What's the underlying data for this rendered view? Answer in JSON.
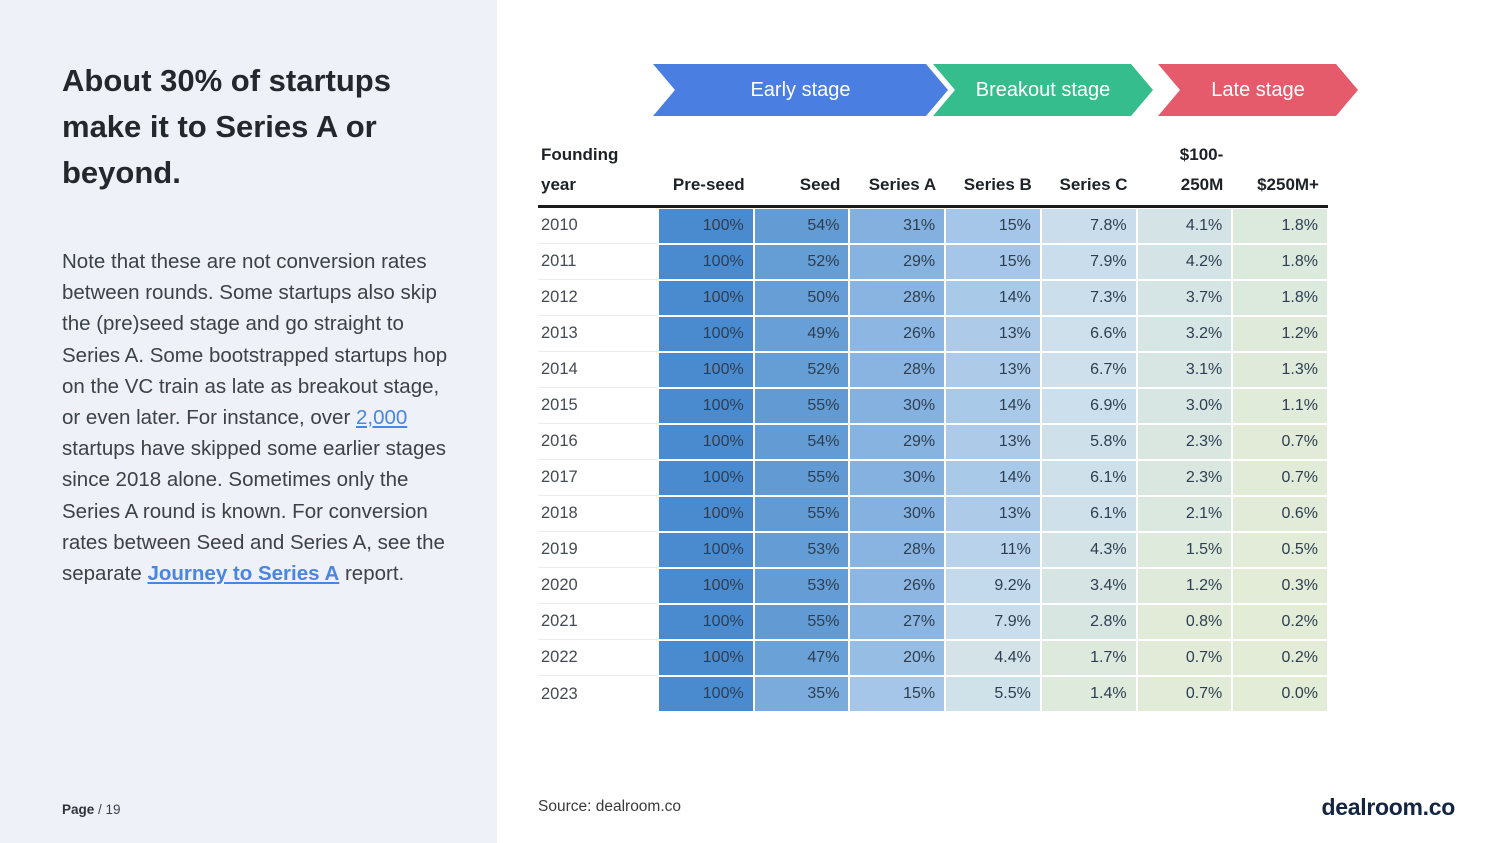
{
  "sidebar": {
    "title": "About 30% of startups make it to Series A or beyond.",
    "paragraph": {
      "part1": "Note that these are not conversion rates between rounds. Some startups also skip the (pre)seed stage and go straight to Series A. Some bootstrapped startups hop on the VC train as late as breakout stage, or even later. For instance, over ",
      "link1": "2,000",
      "part2": " startups have skipped some earlier stages since 2018 alone. Sometimes only the Series A round is known. For conversion rates between Seed and Series A, see the separate ",
      "link2": "Journey to Series A",
      "part3": " report."
    },
    "page_label": "Page",
    "page_number": "/ 19"
  },
  "stage_banners": [
    {
      "label": "Early stage",
      "color": "#4a7ee0"
    },
    {
      "label": "Breakout stage",
      "color": "#36bd8d"
    },
    {
      "label": "Late stage",
      "color": "#e65b6c"
    }
  ],
  "footer": {
    "source": "Source: dealroom.co",
    "logo": "dealroom.co"
  },
  "chart_data": {
    "type": "heatmap",
    "title": "Share of startups reaching each funding stage by founding year",
    "columns": [
      "Founding year",
      "Pre-seed",
      "Seed",
      "Series A",
      "Series B",
      "Series C",
      "$100-250M",
      "$250M+"
    ],
    "header_lines": [
      [
        "Founding",
        "year"
      ],
      [
        "Pre-seed"
      ],
      [
        "Seed"
      ],
      [
        "Series A"
      ],
      [
        "Series B"
      ],
      [
        "Series C"
      ],
      [
        "$100-",
        "250M"
      ],
      [
        "$250M+"
      ]
    ],
    "rows": [
      {
        "year": "2010",
        "values": [
          "100%",
          "54%",
          "31%",
          "15%",
          "7.8%",
          "4.1%",
          "1.8%"
        ]
      },
      {
        "year": "2011",
        "values": [
          "100%",
          "52%",
          "29%",
          "15%",
          "7.9%",
          "4.2%",
          "1.8%"
        ]
      },
      {
        "year": "2012",
        "values": [
          "100%",
          "50%",
          "28%",
          "14%",
          "7.3%",
          "3.7%",
          "1.8%"
        ]
      },
      {
        "year": "2013",
        "values": [
          "100%",
          "49%",
          "26%",
          "13%",
          "6.6%",
          "3.2%",
          "1.2%"
        ]
      },
      {
        "year": "2014",
        "values": [
          "100%",
          "52%",
          "28%",
          "13%",
          "6.7%",
          "3.1%",
          "1.3%"
        ]
      },
      {
        "year": "2015",
        "values": [
          "100%",
          "55%",
          "30%",
          "14%",
          "6.9%",
          "3.0%",
          "1.1%"
        ]
      },
      {
        "year": "2016",
        "values": [
          "100%",
          "54%",
          "29%",
          "13%",
          "5.8%",
          "2.3%",
          "0.7%"
        ]
      },
      {
        "year": "2017",
        "values": [
          "100%",
          "55%",
          "30%",
          "14%",
          "6.1%",
          "2.3%",
          "0.7%"
        ]
      },
      {
        "year": "2018",
        "values": [
          "100%",
          "55%",
          "30%",
          "13%",
          "6.1%",
          "2.1%",
          "0.6%"
        ]
      },
      {
        "year": "2019",
        "values": [
          "100%",
          "53%",
          "28%",
          "11%",
          "4.3%",
          "1.5%",
          "0.5%"
        ]
      },
      {
        "year": "2020",
        "values": [
          "100%",
          "53%",
          "26%",
          "9.2%",
          "3.4%",
          "1.2%",
          "0.3%"
        ]
      },
      {
        "year": "2021",
        "values": [
          "100%",
          "55%",
          "27%",
          "7.9%",
          "2.8%",
          "0.8%",
          "0.2%"
        ]
      },
      {
        "year": "2022",
        "values": [
          "100%",
          "47%",
          "20%",
          "4.4%",
          "1.7%",
          "0.7%",
          "0.2%"
        ]
      },
      {
        "year": "2023",
        "values": [
          "100%",
          "35%",
          "15%",
          "5.5%",
          "1.4%",
          "0.7%",
          "0.0%"
        ]
      }
    ],
    "color_stops": [
      [
        0,
        "#e3ecd6"
      ],
      [
        1,
        "#e0ebd9"
      ],
      [
        2,
        "#dbe8de"
      ],
      [
        3,
        "#d7e6e3"
      ],
      [
        4.5,
        "#d3e3e7"
      ],
      [
        5.5,
        "#cfe1e9"
      ],
      [
        6.5,
        "#cde0eb"
      ],
      [
        8,
        "#cadded"
      ],
      [
        10,
        "#bfd6ec"
      ],
      [
        11,
        "#b8d2eb"
      ],
      [
        13,
        "#adcbe9"
      ],
      [
        15,
        "#a5c6e8"
      ],
      [
        20,
        "#96bde4"
      ],
      [
        26,
        "#8db7e2"
      ],
      [
        31,
        "#83b0df"
      ],
      [
        35,
        "#7aabdc"
      ],
      [
        47,
        "#6aa1d7"
      ],
      [
        55,
        "#629ad4"
      ],
      [
        100,
        "#4a8bd0"
      ]
    ],
    "legend_position": "top",
    "grid": false
  }
}
